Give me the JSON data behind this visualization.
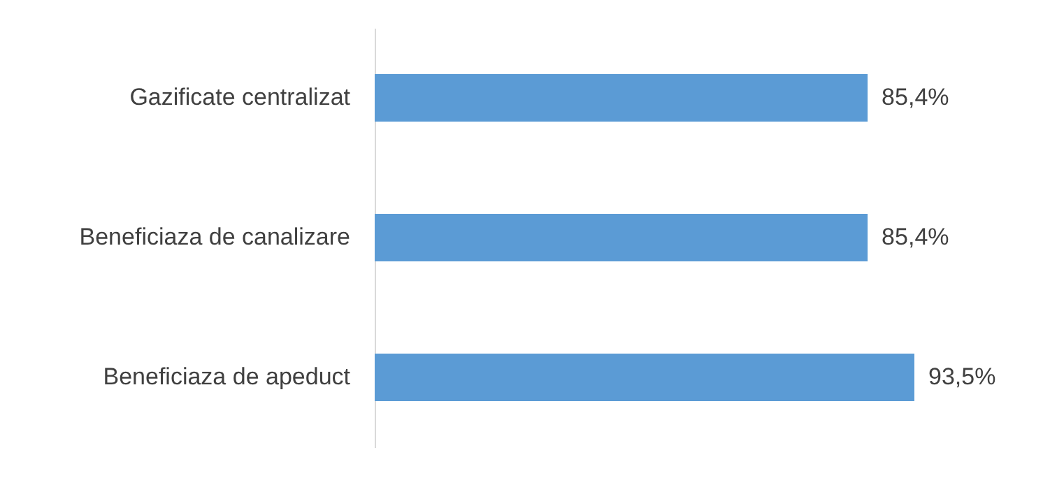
{
  "chart_data": {
    "type": "bar",
    "orientation": "horizontal",
    "categories": [
      "Gazificate centralizat",
      "Beneficiaza de canalizare",
      "Beneficiaza de apeduct"
    ],
    "values": [
      85.4,
      85.4,
      93.5
    ],
    "value_labels": [
      "85,4%",
      "85,4%",
      "93,5%"
    ],
    "color": "#5b9bd5",
    "tick_labels": "y"
  }
}
